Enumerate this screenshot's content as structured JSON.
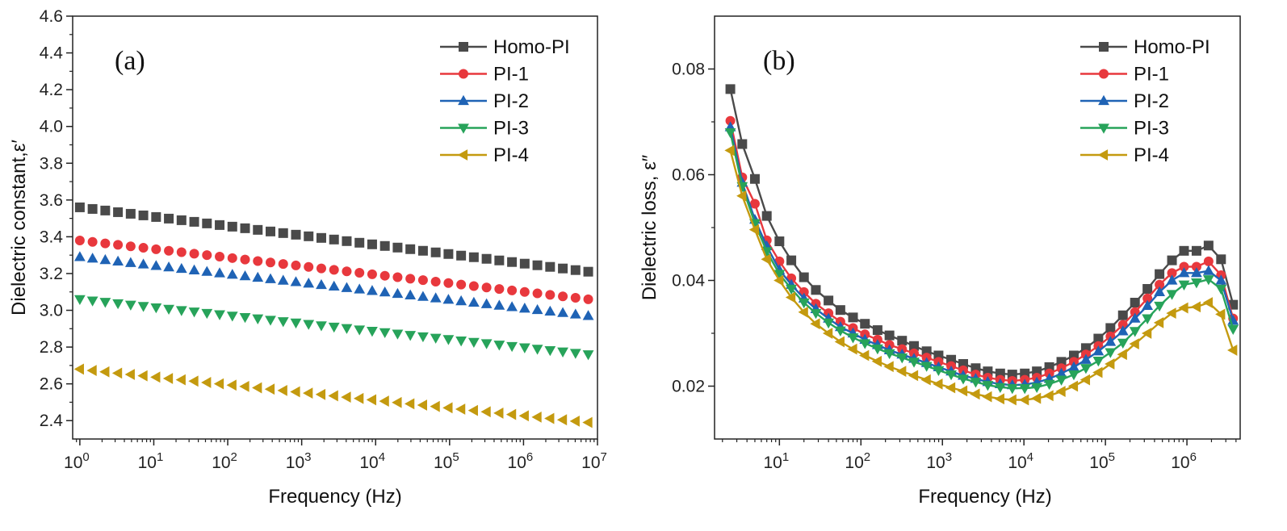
{
  "chart_data": [
    {
      "type": "line",
      "panel_label": "(a)",
      "xlabel": "Frequency (Hz)",
      "ylabel": "Dielectric constant,ε′",
      "x_scale": "log",
      "xlim": [
        0.8,
        10000000
      ],
      "ylim": [
        2.3,
        4.6
      ],
      "x_tick_labels": [
        "10⁰",
        "10¹",
        "10²",
        "10³",
        "10⁴",
        "10⁵",
        "10⁶",
        "10⁷"
      ],
      "x_tick_values": [
        1,
        10,
        100,
        1000,
        10000,
        100000,
        1000000,
        10000000
      ],
      "y_tick_labels": [
        "2.4",
        "2.6",
        "2.8",
        "3.0",
        "3.2",
        "3.4",
        "3.6",
        "3.8",
        "4.0",
        "4.2",
        "4.4",
        "4.6"
      ],
      "y_tick_values": [
        2.4,
        2.6,
        2.8,
        3.0,
        3.2,
        3.4,
        3.6,
        3.8,
        4.0,
        4.2,
        4.4,
        4.6
      ],
      "legend_position": "top-right",
      "x_range": [
        1,
        7500000
      ],
      "points_per_series": 41,
      "series": [
        {
          "name": "Homo-PI",
          "color": "#4a4a4a",
          "marker": "square",
          "y_start": 3.56,
          "y_end": 3.21
        },
        {
          "name": "PI-1",
          "color": "#e8383d",
          "marker": "circle",
          "y_start": 3.38,
          "y_end": 3.06
        },
        {
          "name": "PI-2",
          "color": "#1f63b5",
          "marker": "triangle-up",
          "y_start": 3.29,
          "y_end": 2.97
        },
        {
          "name": "PI-3",
          "color": "#27a35a",
          "marker": "triangle-down",
          "y_start": 3.06,
          "y_end": 2.76
        },
        {
          "name": "PI-4",
          "color": "#c49a0f",
          "marker": "triangle-left",
          "y_start": 2.68,
          "y_end": 2.39
        }
      ]
    },
    {
      "type": "line",
      "panel_label": "(b)",
      "xlabel": "Frequency (Hz)",
      "ylabel": "Dielectric loss, ε″",
      "x_scale": "log",
      "xlim": [
        1.6,
        4500000
      ],
      "ylim": [
        0.01,
        0.09
      ],
      "x_tick_labels": [
        "10¹",
        "10²",
        "10³",
        "10⁴",
        "10⁵",
        "10⁶"
      ],
      "x_tick_values": [
        10,
        100,
        1000,
        10000,
        100000,
        1000000
      ],
      "y_tick_labels": [
        "0.02",
        "0.04",
        "0.06",
        "0.08"
      ],
      "y_tick_values": [
        0.02,
        0.04,
        0.06,
        0.08
      ],
      "legend_position": "top-right",
      "x": [
        2.5,
        3.5,
        5,
        7,
        10,
        14,
        20,
        28,
        40,
        56,
        80,
        112,
        160,
        224,
        320,
        448,
        640,
        896,
        1280,
        1800,
        2560,
        3600,
        5120,
        7200,
        10240,
        14400,
        20480,
        28800,
        40960,
        57600,
        81920,
        115200,
        163840,
        230400,
        327680,
        460800,
        655360,
        921600,
        1310720,
        1843200,
        2621440,
        3686400
      ],
      "series": [
        {
          "name": "Homo-PI",
          "color": "#4a4a4a",
          "marker": "square",
          "values": [
            0.0762,
            0.0658,
            0.0592,
            0.0522,
            0.0474,
            0.0438,
            0.0406,
            0.0382,
            0.0362,
            0.0344,
            0.033,
            0.0318,
            0.0306,
            0.0296,
            0.0286,
            0.0276,
            0.0266,
            0.0258,
            0.025,
            0.0242,
            0.0234,
            0.0228,
            0.0224,
            0.0222,
            0.0224,
            0.0228,
            0.0236,
            0.0246,
            0.0258,
            0.0272,
            0.029,
            0.031,
            0.0334,
            0.0358,
            0.0384,
            0.0412,
            0.0438,
            0.0456,
            0.0456,
            0.0466,
            0.044,
            0.0354
          ]
        },
        {
          "name": "PI-1",
          "color": "#e8383d",
          "marker": "circle",
          "values": [
            0.0702,
            0.0595,
            0.0545,
            0.0476,
            0.0436,
            0.0404,
            0.0378,
            0.0356,
            0.0338,
            0.0322,
            0.031,
            0.0298,
            0.0288,
            0.0278,
            0.027,
            0.0262,
            0.0254,
            0.0246,
            0.0238,
            0.023,
            0.0222,
            0.0216,
            0.0212,
            0.021,
            0.0212,
            0.0216,
            0.0224,
            0.0234,
            0.0246,
            0.026,
            0.0276,
            0.0294,
            0.0316,
            0.034,
            0.0366,
            0.0392,
            0.0414,
            0.0426,
            0.0426,
            0.0436,
            0.041,
            0.0328
          ]
        },
        {
          "name": "PI-2",
          "color": "#1f63b5",
          "marker": "triangle-up",
          "values": [
            0.069,
            0.0585,
            0.0515,
            0.0465,
            0.042,
            0.0392,
            0.0366,
            0.0346,
            0.0328,
            0.0312,
            0.03,
            0.0288,
            0.0278,
            0.0268,
            0.026,
            0.0252,
            0.0244,
            0.0236,
            0.0228,
            0.022,
            0.0214,
            0.0208,
            0.0204,
            0.0202,
            0.0203,
            0.0207,
            0.0214,
            0.0224,
            0.0236,
            0.025,
            0.0266,
            0.0284,
            0.0304,
            0.0328,
            0.0352,
            0.0378,
            0.04,
            0.0414,
            0.0414,
            0.0418,
            0.04,
            0.0324
          ]
        },
        {
          "name": "PI-3",
          "color": "#27a35a",
          "marker": "triangle-down",
          "values": [
            0.068,
            0.0578,
            0.0508,
            0.0455,
            0.0412,
            0.0384,
            0.0358,
            0.0338,
            0.032,
            0.0305,
            0.0292,
            0.0281,
            0.0271,
            0.0262,
            0.0254,
            0.0246,
            0.0238,
            0.023,
            0.0222,
            0.0214,
            0.0208,
            0.0202,
            0.0198,
            0.0196,
            0.0196,
            0.0198,
            0.0204,
            0.0212,
            0.0222,
            0.0234,
            0.0248,
            0.0264,
            0.0282,
            0.0304,
            0.0328,
            0.0352,
            0.0374,
            0.0392,
            0.0396,
            0.0402,
            0.0384,
            0.0308
          ]
        },
        {
          "name": "PI-4",
          "color": "#c49a0f",
          "marker": "triangle-left",
          "values": [
            0.0646,
            0.056,
            0.0496,
            0.044,
            0.04,
            0.0368,
            0.034,
            0.0318,
            0.03,
            0.0284,
            0.027,
            0.0258,
            0.0247,
            0.0237,
            0.0228,
            0.022,
            0.0212,
            0.0204,
            0.0197,
            0.0191,
            0.0185,
            0.018,
            0.0176,
            0.0174,
            0.0174,
            0.0177,
            0.0182,
            0.019,
            0.02,
            0.0212,
            0.0226,
            0.0242,
            0.026,
            0.028,
            0.03,
            0.032,
            0.0338,
            0.0348,
            0.035,
            0.0358,
            0.0336,
            0.0268
          ]
        }
      ]
    }
  ]
}
